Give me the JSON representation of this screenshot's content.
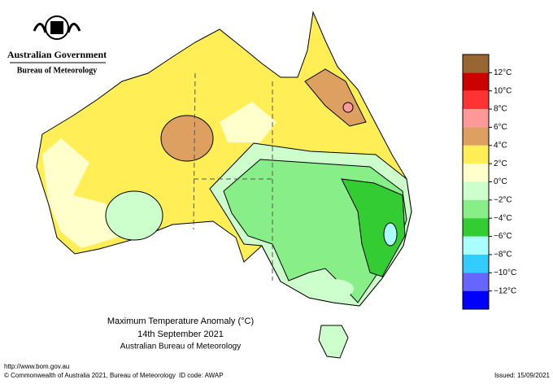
{
  "header": {
    "government": "Australian Government",
    "bureau": "Bureau of Meteorology"
  },
  "title": {
    "line1": "Maximum Temperature Anomaly (°C)",
    "line2": "14th September 2021",
    "line3": "Australian Bureau of Meteorology"
  },
  "legend": {
    "labels": [
      "12°C",
      "10°C",
      "8°C",
      "6°C",
      "4°C",
      "2°C",
      "0°C",
      "−2°C",
      "−4°C",
      "−6°C",
      "−8°C",
      "−10°C",
      "−12°C"
    ],
    "colors": [
      "#996633",
      "#cc0000",
      "#ff3333",
      "#ff9999",
      "#dda060",
      "#ffee55",
      "#ffffcc",
      "#ccffcc",
      "#88ee88",
      "#33cc33",
      "#aaffff",
      "#33ccff",
      "#6666ff",
      "#0000ff"
    ]
  },
  "footer": {
    "url": "http://www.bom.gov.au",
    "copyright": "© Commonwealth of Australia 2021, Bureau of Meteorology",
    "id": "ID code: AWAP",
    "issued": "Issued: 15/09/2021"
  }
}
